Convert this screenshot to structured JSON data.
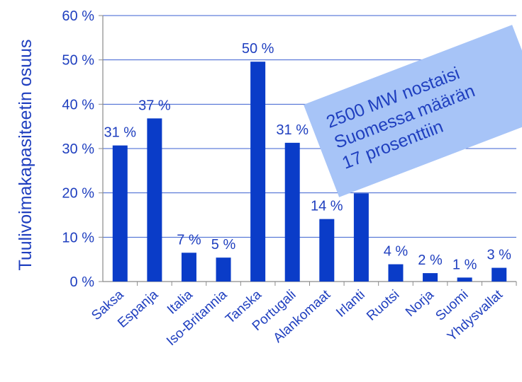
{
  "chart_data": {
    "type": "bar",
    "title": "",
    "xlabel": "",
    "ylabel": "Tuulivoimakapasiteetin osuus",
    "ylim": [
      0,
      60
    ],
    "yticks": [
      "0 %",
      "10 %",
      "20 %",
      "30 %",
      "40 %",
      "50 %",
      "60 %"
    ],
    "grid": true,
    "legend": "none",
    "categories": [
      "Saksa",
      "Espanja",
      "Italia",
      "Iso-Britannia",
      "Tanska",
      "Portugali",
      "Alankomaat",
      "Irlanti",
      "Ruotsi",
      "Norja",
      "Suomi",
      "Yhdysvallat"
    ],
    "values": [
      30.7,
      36.8,
      6.5,
      5.4,
      49.6,
      31.3,
      14.1,
      19.9,
      3.9,
      1.9,
      0.9,
      3.1
    ],
    "data_labels": [
      "31 %",
      "37 %",
      "7 %",
      "5 %",
      "50 %",
      "31 %",
      "14 %",
      "",
      "4 %",
      "2 %",
      "1 %",
      "3 %"
    ],
    "bar_color": "#0a3cc8",
    "annotation": {
      "lines": [
        "2500 MW  nostaisi",
        "Suomessa määrän",
        "17 prosenttiin"
      ],
      "background": "#a7c4f7"
    }
  },
  "colors": {
    "text": "#1f3fbf",
    "grid": "#3a5fd0",
    "axis": "#8a8a8a"
  }
}
